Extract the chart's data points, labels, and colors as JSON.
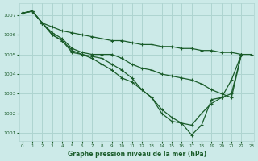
{
  "title": "Graphe pression niveau de la mer (hPa)",
  "bg_color": "#cceae8",
  "grid_color": "#aed4d0",
  "line_color": "#1a5c2a",
  "series": [
    {
      "x": [
        0,
        1,
        2,
        3,
        4,
        5,
        6,
        7,
        8,
        9,
        10,
        11,
        12,
        13,
        14,
        15,
        16,
        17,
        18,
        19,
        20,
        21,
        22,
        23
      ],
      "y": [
        1007.1,
        1007.2,
        1006.6,
        1006.4,
        1006.2,
        1006.1,
        1006.0,
        1005.9,
        1005.8,
        1005.7,
        1005.7,
        1005.6,
        1005.5,
        1005.5,
        1005.4,
        1005.4,
        1005.3,
        1005.3,
        1005.2,
        1005.2,
        1005.1,
        1005.1,
        1005.0,
        1005.0
      ]
    },
    {
      "x": [
        0,
        1,
        2,
        3,
        4,
        5,
        6,
        7,
        8,
        9,
        10,
        11,
        12,
        13,
        14,
        15,
        16,
        17,
        18,
        19,
        20,
        21,
        22
      ],
      "y": [
        1007.1,
        1007.2,
        1006.6,
        1006.1,
        1005.8,
        1005.3,
        1005.1,
        1005.0,
        1005.0,
        1005.0,
        1004.8,
        1004.5,
        1004.3,
        1004.2,
        1004.0,
        1003.9,
        1003.8,
        1003.7,
        1003.5,
        1003.2,
        1003.0,
        1002.8,
        1005.0
      ]
    },
    {
      "x": [
        0,
        1,
        2,
        3,
        4,
        5,
        6,
        7,
        8,
        9,
        10,
        11,
        12,
        13,
        14,
        15,
        16,
        17,
        18,
        19,
        20,
        21,
        22
      ],
      "y": [
        1007.1,
        1007.2,
        1006.6,
        1006.0,
        1005.7,
        1005.2,
        1005.0,
        1004.9,
        1004.8,
        1004.5,
        1004.2,
        1003.8,
        1003.2,
        1002.8,
        1002.2,
        1001.8,
        1001.5,
        1001.4,
        1002.0,
        1002.5,
        1002.8,
        1003.0,
        1005.0
      ]
    },
    {
      "x": [
        0,
        1,
        2,
        3,
        4,
        5,
        6,
        7,
        8,
        9,
        10,
        11,
        12,
        13,
        14,
        15,
        16,
        17,
        18,
        19,
        20,
        21,
        22
      ],
      "y": [
        1007.1,
        1007.2,
        1006.6,
        1006.0,
        1005.7,
        1005.1,
        1005.0,
        1004.8,
        1004.5,
        1004.2,
        1003.8,
        1003.6,
        1003.2,
        1002.8,
        1002.0,
        1001.6,
        1001.5,
        1000.9,
        1001.4,
        1002.7,
        1002.8,
        1003.7,
        1005.0
      ]
    }
  ],
  "ylim": [
    1000.6,
    1007.6
  ],
  "yticks": [
    1001,
    1002,
    1003,
    1004,
    1005,
    1006,
    1007
  ],
  "xlim": [
    -0.3,
    23.3
  ],
  "xticks": [
    0,
    1,
    2,
    3,
    4,
    5,
    6,
    7,
    8,
    9,
    10,
    11,
    12,
    13,
    14,
    15,
    16,
    17,
    18,
    19,
    20,
    21,
    22,
    23
  ],
  "marker": "+",
  "markersize": 3.5,
  "linewidth": 0.9
}
